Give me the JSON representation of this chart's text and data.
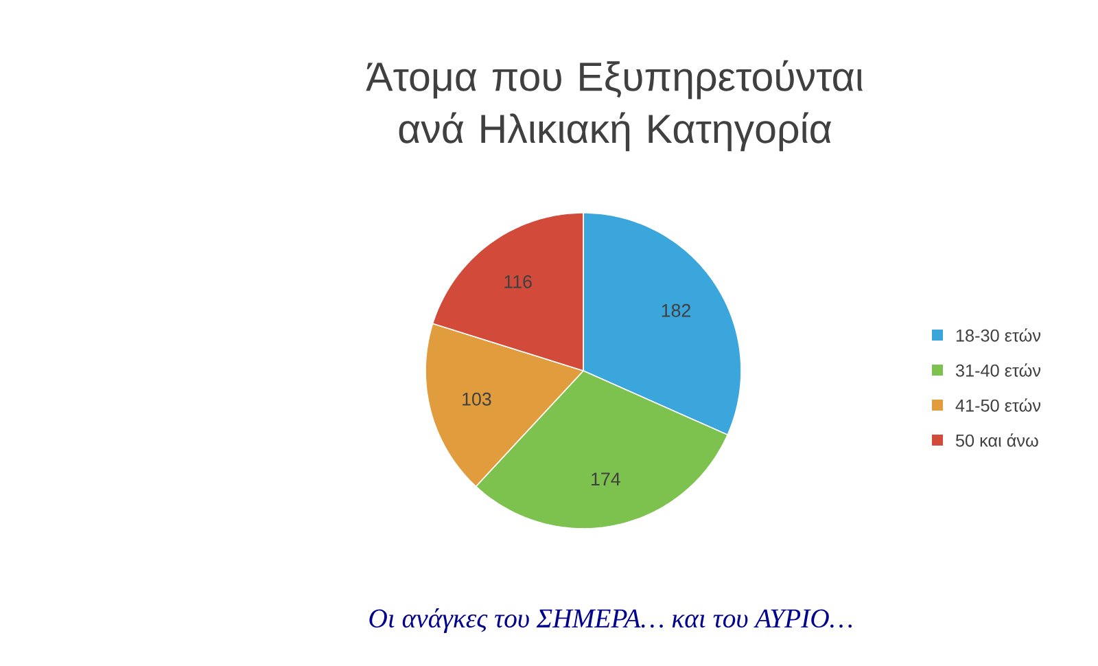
{
  "chart_data": {
    "type": "pie",
    "title": "Άτομα που Εξυπηρετούνται ανά Ηλικιακή Κατηγορία",
    "categories": [
      "18-30 ετών",
      "31-40 ετών",
      "41-50 ετών",
      "50 και άνω"
    ],
    "values": [
      182,
      174,
      103,
      116
    ],
    "colors": [
      "#3aa6dc",
      "#7dc24e",
      "#e09c3d",
      "#d24b3a"
    ],
    "data_labels": true,
    "legend": "right",
    "annotations": [
      "Οι ανάγκες του ΣΗΜΕΡΑ… και του ΑΥΡΙΟ…"
    ]
  }
}
